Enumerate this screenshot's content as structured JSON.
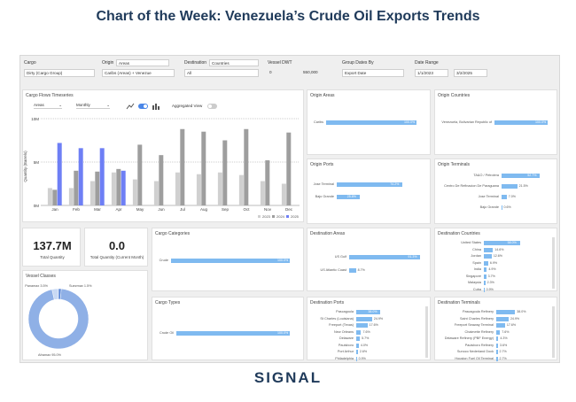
{
  "header": {
    "title": "Chart of the Week: Venezuela’s Crude Oil Exports Trends"
  },
  "filters": {
    "cargo": {
      "label": "Cargo",
      "value": "Dirty (Cargo Group)"
    },
    "origin": {
      "label": "Origin",
      "mode": "Areas",
      "value": "Caribs (Areas) + Venezue"
    },
    "destination": {
      "label": "Destination",
      "mode": "Countries",
      "value": "All"
    },
    "vessel_dwt": {
      "label": "Vessel DWT",
      "min": "0",
      "max": "550,000"
    },
    "group_dates_by": {
      "label": "Group Dates By",
      "value": "Export Date"
    },
    "date_range": {
      "label": "Date Range",
      "start": "1/1/2023",
      "end": "3/2/2025"
    }
  },
  "timeseries": {
    "title": "Cargo Flows Timeseries",
    "group_select": "Areas",
    "period_select": "Monthly",
    "aggregated_view_label": "Aggregated View",
    "y_axis_label": "Quantity (Barrels)",
    "y_ticks": [
      "10M",
      "5M",
      "0M"
    ],
    "legend": [
      "2023",
      "2024",
      "2025"
    ]
  },
  "chart_data": {
    "type": "bar",
    "title": "Cargo Flows Timeseries",
    "ylabel": "Quantity (Barrels)",
    "ylim": [
      0,
      10
    ],
    "categories": [
      "Jan",
      "Feb",
      "Mar",
      "Apr",
      "May",
      "Jun",
      "Jul",
      "Aug",
      "Sep",
      "Oct",
      "Nov",
      "Dec"
    ],
    "series": [
      {
        "name": "2023",
        "color": "#d0d0d0",
        "values": [
          2.0,
          2.0,
          2.8,
          3.8,
          3.0,
          2.8,
          3.8,
          3.6,
          3.8,
          3.5,
          2.8,
          2.5
        ]
      },
      {
        "name": "2024",
        "color": "#9e9e9e",
        "values": [
          1.8,
          4.0,
          3.9,
          4.2,
          7.0,
          5.8,
          8.8,
          8.5,
          7.5,
          8.8,
          5.2,
          8.4
        ]
      },
      {
        "name": "2025",
        "color": "#6e7ff5",
        "values": [
          7.2,
          6.6,
          6.6,
          4.0,
          0,
          0,
          0,
          0,
          0,
          0,
          0,
          0
        ]
      }
    ]
  },
  "kpis": {
    "total_quantity": {
      "value": "137.7M",
      "label": "Total Quantity"
    },
    "current_month": {
      "value": "0.0",
      "label": "Total Quantity (Current Month)"
    }
  },
  "vessel_classes": {
    "title": "Vessel Classes",
    "segments": [
      {
        "label": "Aframax",
        "pct": 95.0,
        "display": "Aframax 95.0%"
      },
      {
        "label": "Panamax",
        "pct": 3.5,
        "display": "Panamax 3.5%"
      },
      {
        "label": "Suezmax",
        "pct": 1.5,
        "display": "Suezmax 1.5%"
      }
    ]
  },
  "cargo_categories": {
    "title": "Cargo Categories",
    "items": [
      {
        "label": "Crude",
        "value": 100.0,
        "display": "100.0%"
      }
    ]
  },
  "cargo_types": {
    "title": "Cargo Types",
    "items": [
      {
        "label": "Crude Oil",
        "value": 100.0,
        "display": "100.0%"
      }
    ]
  },
  "origin_areas": {
    "title": "Origin Areas",
    "items": [
      {
        "label": "Caribs",
        "value": 100.0,
        "display": "100.0%"
      }
    ]
  },
  "origin_countries": {
    "title": "Origin Countries",
    "items": [
      {
        "label": "Venezuela, Bolivarian Republic of",
        "value": 100.0,
        "display": "100.0%"
      }
    ]
  },
  "origin_ports": {
    "title": "Origin Ports",
    "items": [
      {
        "label": "Jose Terminal",
        "value": 74.2,
        "display": "74.2%"
      },
      {
        "label": "Bajo Grande",
        "value": 25.8,
        "display": "25.8%"
      }
    ]
  },
  "origin_terminals": {
    "title": "Origin Terminals",
    "items": [
      {
        "label": "TA&O / Petrolera",
        "value": 52.7,
        "display": "52.7%"
      },
      {
        "label": "Centro De Refinacion De Paraguana",
        "value": 21.5,
        "display": "21.5%"
      },
      {
        "label": "Jose Terminal",
        "value": 7.0,
        "display": "7.0%"
      },
      {
        "label": "Bajo Grande",
        "value": 0.6,
        "display": "0.6%"
      }
    ]
  },
  "destination_areas": {
    "title": "Destination Areas",
    "items": [
      {
        "label": "US Gulf",
        "value": 91.3,
        "display": "91.3%"
      },
      {
        "label": "US Atlantic Coast",
        "value": 8.7,
        "display": "8.7%"
      }
    ]
  },
  "destination_countries": {
    "title": "Destination Countries",
    "items": [
      {
        "label": "United States",
        "value": 58.0,
        "display": "58.0%"
      },
      {
        "label": "China",
        "value": 14.6,
        "display": "14.6%"
      },
      {
        "label": "Jordan",
        "value": 12.6,
        "display": "12.6%"
      },
      {
        "label": "Spain",
        "value": 6.9,
        "display": "6.9%"
      },
      {
        "label": "India",
        "value": 4.9,
        "display": "4.9%"
      },
      {
        "label": "Singapore",
        "value": 3.7,
        "display": "3.7%"
      },
      {
        "label": "Malaysia",
        "value": 2.3,
        "display": "2.3%"
      },
      {
        "label": "Cuba",
        "value": 0.9,
        "display": "0.9%"
      }
    ]
  },
  "destination_ports": {
    "title": "Destination Ports",
    "items": [
      {
        "label": "Pascagoula",
        "value": 38.0,
        "display": "38.0%"
      },
      {
        "label": "St Charles (Louisiana)",
        "value": 24.9,
        "display": "24.9%"
      },
      {
        "label": "Freeport (Texas)",
        "value": 17.6,
        "display": "17.6%"
      },
      {
        "label": "New Orleans",
        "value": 7.6,
        "display": "7.6%"
      },
      {
        "label": "Delaware",
        "value": 5.7,
        "display": "5.7%"
      },
      {
        "label": "Paulsboro",
        "value": 4.0,
        "display": "4.0%"
      },
      {
        "label": "Port Arthur",
        "value": 2.6,
        "display": "2.6%"
      },
      {
        "label": "Philadelphia",
        "value": 0.9,
        "display": "0.9%"
      }
    ]
  },
  "destination_terminals": {
    "title": "Destination Terminals",
    "items": [
      {
        "label": "Pascagoula Refinery",
        "value": 38.0,
        "display": "38.0%"
      },
      {
        "label": "Saint Charles Refinery",
        "value": 24.9,
        "display": "24.9%"
      },
      {
        "label": "Freeport Seaway Terminal",
        "value": 17.6,
        "display": "17.6%"
      },
      {
        "label": "Chalmette Refinery",
        "value": 7.6,
        "display": "7.6%"
      },
      {
        "label": "Delaware Refinery (PBF Energy)",
        "value": 4.3,
        "display": "4.3%"
      },
      {
        "label": "Paulsboro Refinery",
        "value": 3.6,
        "display": "3.6%"
      },
      {
        "label": "Sunoco Nederland Dock",
        "value": 2.7,
        "display": "2.7%"
      },
      {
        "label": "Houston Fuel Oil Terminal",
        "value": 2.7,
        "display": "2.7%"
      }
    ]
  },
  "brand": {
    "logo_text": "SIGNAL",
    "color": "#1f3a5a",
    "accent": "#7fbaf0"
  }
}
